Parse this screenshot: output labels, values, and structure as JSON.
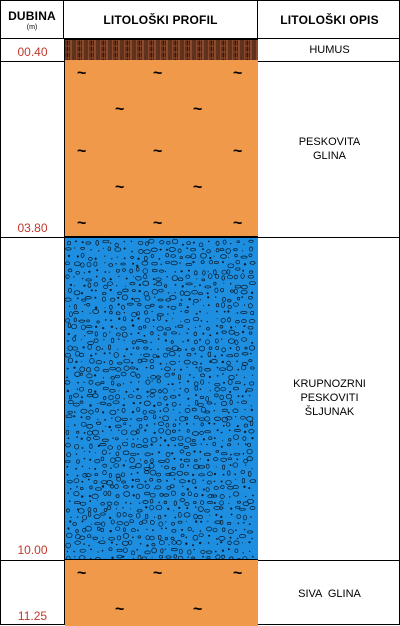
{
  "header": {
    "depth_title": "DUBINA",
    "depth_unit": "(m)",
    "profile_title": "LITOLOŠKI PROFIL",
    "description_title": "LITOLOŠKI OPIS"
  },
  "layers": [
    {
      "name": "humus",
      "bottom_depth_label": "00.40",
      "description": [
        "HUMUS"
      ],
      "pattern": "humus-hatch-icon",
      "color": "#8b4a2b"
    },
    {
      "name": "peskovita-glina",
      "bottom_depth_label": "03.80",
      "description": [
        "PESKOVITA",
        "GLINA"
      ],
      "pattern": "clay-tilde-icon",
      "color": "#f0994a"
    },
    {
      "name": "krupnozrni-peskoviti-sljunak",
      "bottom_depth_label": "10.00",
      "description": [
        "KRUPNOZRNI",
        "PESKOVITI",
        "ŠLJUNAK"
      ],
      "pattern": "gravel-pebble-icon",
      "color": "#1e8fe0"
    },
    {
      "name": "siva-glina",
      "bottom_depth_label": "11.25",
      "description": [
        "SIVA  GLINA"
      ],
      "pattern": "clay-tilde-icon",
      "color": "#f0994a"
    }
  ]
}
